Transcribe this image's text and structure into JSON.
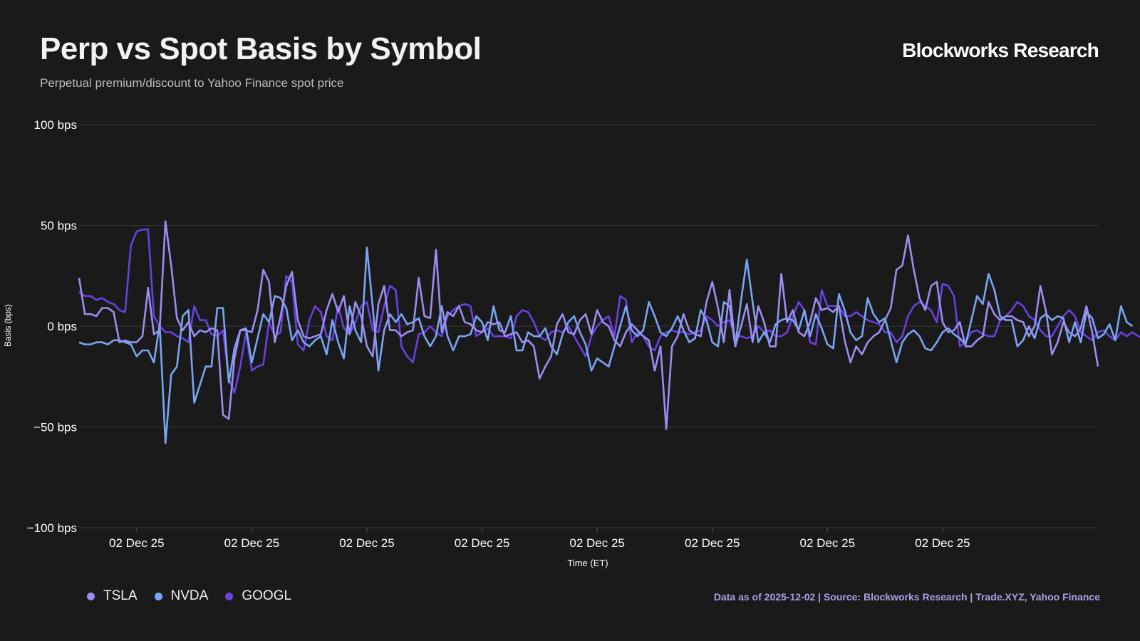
{
  "header": {
    "title": "Perp vs Spot Basis by Symbol",
    "subtitle": "Perpetual premium/discount to Yahoo Finance spot price",
    "brand": "Blockworks Research"
  },
  "footer": {
    "source": "Data as of 2025-12-02 | Source: Blockworks Research | Trade.XYZ, Yahoo Finance"
  },
  "chart_data": {
    "type": "line",
    "title": "Perp vs Spot Basis by Symbol",
    "subtitle": "Perpetual premium/discount to Yahoo Finance spot price",
    "xlabel": "Time (ET)",
    "ylabel": "Basis (bps)",
    "ylim": [
      -100,
      100
    ],
    "yticks": [
      {
        "value": 100,
        "label": "100 bps"
      },
      {
        "value": 50,
        "label": "50 bps"
      },
      {
        "value": 0,
        "label": "0 bps"
      },
      {
        "value": -50,
        "label": "−50 bps"
      },
      {
        "value": -100,
        "label": "−100 bps"
      }
    ],
    "xticks": [
      {
        "value": 10,
        "label": "02 Dec 25"
      },
      {
        "value": 30,
        "label": "02 Dec 25"
      },
      {
        "value": 50,
        "label": "02 Dec 25"
      },
      {
        "value": 70,
        "label": "02 Dec 25"
      },
      {
        "value": 90,
        "label": "02 Dec 25"
      },
      {
        "value": 110,
        "label": "02 Dec 25"
      },
      {
        "value": 130,
        "label": "02 Dec 25"
      },
      {
        "value": 150,
        "label": "02 Dec 25"
      }
    ],
    "grid": true,
    "legend_position": "bottom-left",
    "series": [
      {
        "name": "TSLA",
        "color": "#9b8ef0",
        "values": [
          24,
          6,
          6,
          5,
          9,
          9,
          7,
          -8,
          -7,
          -8,
          -8,
          -5,
          19,
          -4,
          -2,
          52,
          30,
          4,
          -2,
          2,
          -5,
          -2,
          -3,
          -1,
          -2,
          -44,
          -46,
          -16,
          -2,
          -2,
          -3,
          8,
          28,
          22,
          -8,
          5,
          20,
          27,
          3,
          -5,
          -6,
          -5,
          -4,
          8,
          16,
          7,
          15,
          -4,
          12,
          5,
          -10,
          -15,
          11,
          20,
          -2,
          -2,
          -5,
          -3,
          -2,
          24,
          5,
          4,
          38,
          -3,
          7,
          5,
          10,
          2,
          1,
          -2,
          -3,
          2,
          1,
          2,
          -5,
          -4,
          -3,
          -8,
          -7,
          -10,
          -26,
          -20,
          -15,
          1,
          6,
          -3,
          -4,
          3,
          6,
          -4,
          8,
          2,
          0,
          -7,
          -10,
          -3,
          1,
          -2,
          -5,
          -7,
          -22,
          -10,
          -51,
          -10,
          -5,
          6,
          -2,
          -4,
          -5,
          12,
          22,
          9,
          -8,
          18,
          -10,
          0,
          11,
          -8,
          10,
          2,
          -10,
          -10,
          26,
          2,
          8,
          -3,
          -5,
          2,
          14,
          8,
          9,
          7,
          10,
          -7,
          -18,
          -10,
          -14,
          -8,
          -5,
          -3,
          3,
          9,
          28,
          30,
          45,
          28,
          14,
          8,
          20,
          22,
          2,
          -3,
          -2,
          2,
          -10,
          -10,
          -7,
          -5,
          12,
          6,
          3,
          5,
          5,
          3,
          2,
          -5,
          0,
          20,
          7,
          -14,
          -8,
          2,
          -3,
          -5,
          -1,
          10,
          -3,
          -20
        ]
      },
      {
        "name": "NVDA",
        "color": "#79a5f2",
        "values": [
          -8,
          -9,
          -9,
          -8,
          -8,
          -9,
          -7,
          -7,
          -8,
          -9,
          -15,
          -12,
          -12,
          -18,
          1,
          -58,
          -24,
          -20,
          5,
          8,
          -38,
          -29,
          -20,
          -20,
          9,
          9,
          -28,
          -11,
          -2,
          -1,
          -18,
          -6,
          6,
          2,
          15,
          14,
          9,
          -7,
          -2,
          -8,
          -10,
          -7,
          -5,
          -14,
          3,
          -8,
          -16,
          10,
          -2,
          -8,
          39,
          10,
          -22,
          -2,
          6,
          2,
          6,
          1,
          2,
          4,
          -5,
          -10,
          -5,
          10,
          -5,
          -12,
          -5,
          -5,
          -4,
          5,
          2,
          -7,
          10,
          -2,
          -3,
          5,
          -12,
          -12,
          -3,
          -5,
          -5,
          -1,
          -10,
          -14,
          -4,
          2,
          5,
          -3,
          -9,
          -22,
          -16,
          -18,
          -20,
          -10,
          0,
          10,
          -2,
          -5,
          -2,
          12,
          5,
          -3,
          -5,
          -1,
          5,
          -2,
          -8,
          -6,
          8,
          3,
          -8,
          -10,
          12,
          10,
          -10,
          13,
          33,
          12,
          -8,
          -3,
          -8,
          1,
          3,
          4,
          3,
          -2,
          8,
          -5,
          6,
          -1,
          -9,
          -11,
          16,
          8,
          -3,
          -7,
          -5,
          14,
          6,
          2,
          4,
          -7,
          -18,
          -8,
          -4,
          -2,
          -5,
          -11,
          -12,
          -8,
          -3,
          -1,
          -4,
          -6,
          -9,
          3,
          15,
          11,
          26,
          18,
          5,
          3,
          3,
          -10,
          -7,
          0,
          -6,
          4,
          6,
          3,
          5,
          4,
          -8,
          2,
          -8,
          7,
          4,
          -6,
          -4,
          1,
          -7,
          10,
          2,
          0
        ]
      },
      {
        "name": "GOOGL",
        "color": "#6c3fe0",
        "values": [
          17,
          15,
          15,
          13,
          14,
          12,
          11,
          8,
          7,
          40,
          47,
          48,
          48,
          5,
          0,
          -3,
          -3,
          -5,
          -6,
          -8,
          10,
          3,
          3,
          -4,
          -5,
          -2,
          -26,
          -33,
          -20,
          -3,
          -22,
          -20,
          -19,
          2,
          -5,
          -3,
          25,
          22,
          -9,
          -12,
          3,
          10,
          7,
          -5,
          -7,
          10,
          -1,
          -4,
          2,
          10,
          12,
          -2,
          -3,
          10,
          20,
          18,
          -10,
          -15,
          -18,
          -4,
          -3,
          0,
          -3,
          -5,
          5,
          8,
          10,
          11,
          10,
          -5,
          -3,
          -1,
          -5,
          -5,
          -5,
          -6,
          5,
          8,
          7,
          2,
          -5,
          -7,
          -3,
          -2,
          -3,
          0,
          -5,
          -10,
          -15,
          -5,
          0,
          3,
          5,
          -5,
          15,
          13,
          -8,
          -3,
          -5,
          -10,
          -12,
          -5,
          -3,
          -2,
          -3,
          -3,
          -4,
          -3,
          -2,
          5,
          3,
          0,
          2,
          3,
          -5,
          -5,
          -6,
          -5,
          0,
          -3,
          -2,
          -5,
          -5,
          -3,
          5,
          12,
          8,
          -8,
          -9,
          18,
          10,
          10,
          10,
          5,
          5,
          7,
          5,
          3,
          2,
          1,
          -3,
          -3,
          -8,
          -5,
          5,
          10,
          12,
          10,
          8,
          2,
          21,
          20,
          15,
          -10,
          -8,
          -3,
          -2,
          -4,
          -5,
          -5,
          3,
          5,
          8,
          12,
          10,
          5,
          3,
          -2,
          -5,
          -5,
          0,
          5,
          8,
          5,
          -3,
          -5,
          -7,
          -3,
          -2,
          -5,
          -7,
          -3,
          -5,
          -3,
          -5,
          -6
        ]
      }
    ]
  }
}
